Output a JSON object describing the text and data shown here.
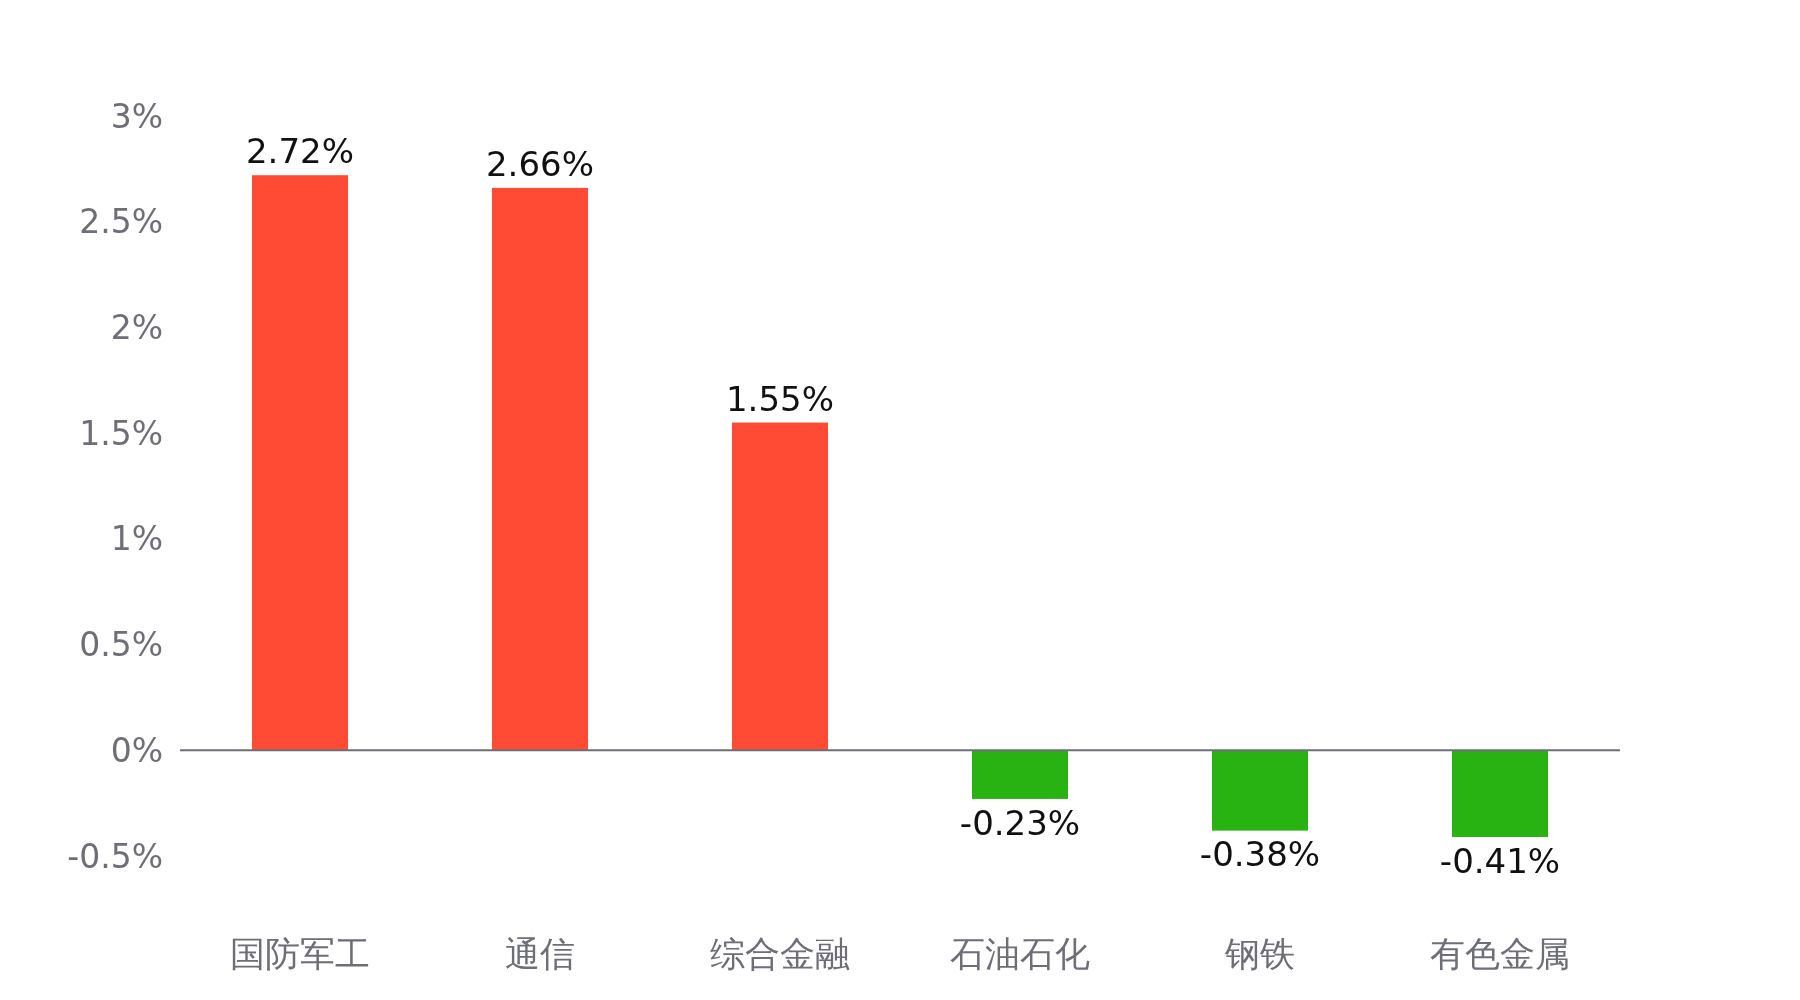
{
  "chart_data": {
    "type": "bar",
    "categories": [
      "国防军工",
      "通信",
      "综合金融",
      "石油石化",
      "钢铁",
      "有色金属"
    ],
    "values": [
      2.72,
      2.66,
      1.55,
      -0.23,
      -0.38,
      -0.41
    ],
    "colors": [
      "#ff4b33",
      "#ff4b33",
      "#ff4b33",
      "#29b312",
      "#29b312",
      "#29b312"
    ],
    "value_labels": [
      "2.72%",
      "2.66%",
      "1.55%",
      "-0.23%",
      "-0.38%",
      "-0.41%"
    ],
    "ylim": [
      -0.5,
      3
    ],
    "yticks": [
      {
        "value": -0.5,
        "label": "-0.5%"
      },
      {
        "value": 0,
        "label": "0%"
      },
      {
        "value": 0.5,
        "label": "0.5%"
      },
      {
        "value": 1,
        "label": "1%"
      },
      {
        "value": 1.5,
        "label": "1.5%"
      },
      {
        "value": 2,
        "label": "2%"
      },
      {
        "value": 2.5,
        "label": "2.5%"
      },
      {
        "value": 3,
        "label": "3%"
      }
    ]
  }
}
